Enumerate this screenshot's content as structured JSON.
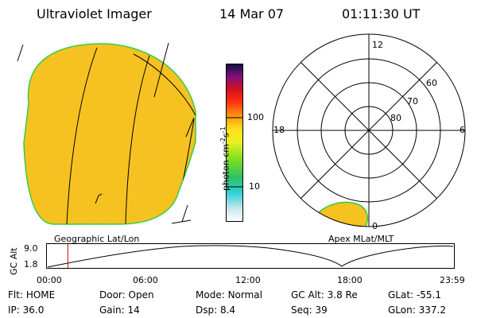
{
  "header": {
    "instrument": "Ultraviolet Imager",
    "date": "14 Mar 07",
    "time": "01:11:30 UT"
  },
  "left_panel": {
    "caption": "Geographic Lat/Lon"
  },
  "right_panel": {
    "caption": "Apex MLat/MLT",
    "mlt_labels": {
      "top": "12",
      "left": "18",
      "right": "6",
      "bottom": "0"
    },
    "lat_labels": [
      "60",
      "70",
      "80"
    ]
  },
  "colorbar": {
    "label": "photon cm",
    "exp1": "-2",
    "s_unit": "s",
    "exp2": "-1",
    "tick_labels": [
      "100",
      "10"
    ]
  },
  "altitude_plot": {
    "ylabel": "GC Alt",
    "yticks": [
      "9.0",
      "1.8"
    ],
    "xticks": [
      "00:00",
      "06:00",
      "12:00",
      "18:00",
      "23:59"
    ],
    "marker_time": "01:11:30"
  },
  "info": {
    "row1": [
      {
        "label": "Flt:",
        "value": "HOME"
      },
      {
        "label": "Door:",
        "value": "Open"
      },
      {
        "label": "Mode:",
        "value": "Normal"
      },
      {
        "label": "GC Alt:",
        "value": "3.8 Re"
      },
      {
        "label": "GLat:",
        "value": "-55.1"
      }
    ],
    "row2": [
      {
        "label": "IP:",
        "value": "36.0"
      },
      {
        "label": "Gain:",
        "value": "14"
      },
      {
        "label": "Dsp:",
        "value": "8.4"
      },
      {
        "label": "Seq:",
        "value": "39"
      },
      {
        "label": "GLon:",
        "value": "337.2"
      }
    ]
  },
  "colors": {
    "image_fill": "#f5c020",
    "image_edge": "#22cc33",
    "marker": "#cc0000"
  }
}
